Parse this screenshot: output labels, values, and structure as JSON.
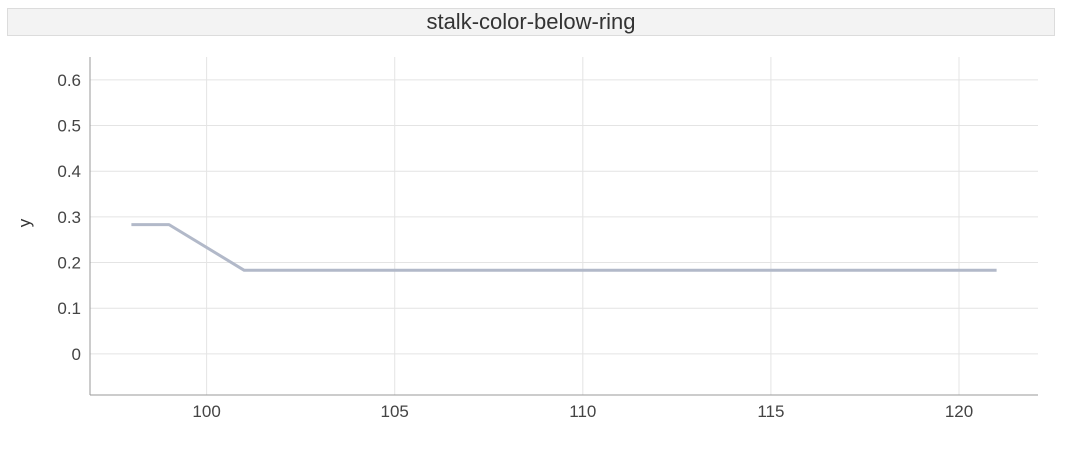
{
  "chart_data": {
    "type": "line",
    "title": "stalk-color-below-ring",
    "xlabel": "",
    "ylabel": "y",
    "xlim": [
      96.9,
      122.1
    ],
    "ylim": [
      -0.09,
      0.65
    ],
    "x_ticks": [
      100,
      105,
      110,
      115,
      120
    ],
    "y_ticks": [
      0,
      0.1,
      0.2,
      0.3,
      0.4,
      0.5,
      0.6
    ],
    "grid": true,
    "series_color": "#b2b9c9",
    "series": [
      {
        "x": [
          98,
          99,
          101,
          121
        ],
        "y": [
          0.283,
          0.283,
          0.183,
          0.183
        ]
      }
    ]
  }
}
